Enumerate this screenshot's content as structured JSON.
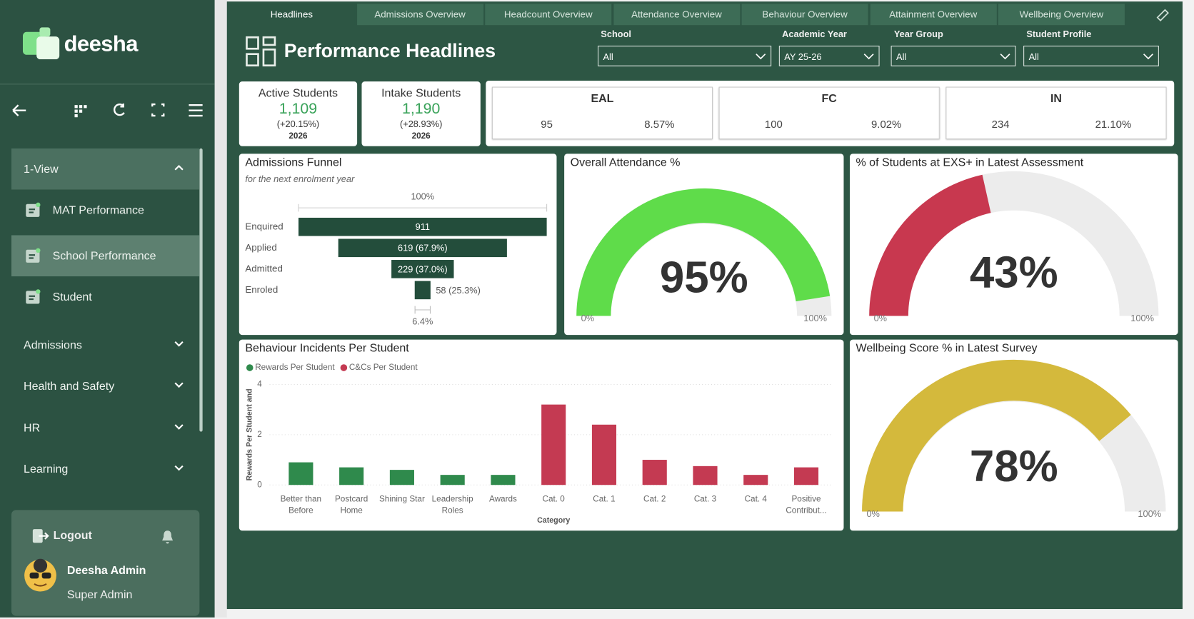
{
  "sidebar": {
    "logo": "deesha",
    "nav": [
      {
        "label": "1-View",
        "items": [
          "MAT Performance",
          "School Performance",
          "Student"
        ]
      },
      {
        "label": "Admissions"
      },
      {
        "label": "Health and Safety"
      },
      {
        "label": "HR"
      },
      {
        "label": "Learning"
      }
    ],
    "logout": "Logout",
    "user": {
      "name": "Deesha Admin",
      "role": "Super Admin"
    }
  },
  "tabs": [
    "Headlines",
    "Admissions Overview",
    "Headcount Overview",
    "Attendance Overview",
    "Behaviour Overview",
    "Attainment Overview",
    "Wellbeing Overview"
  ],
  "header": {
    "title": "Performance Headlines"
  },
  "filters": [
    {
      "label": "School",
      "value": "All"
    },
    {
      "label": "Academic Year",
      "value": "AY 25-26"
    },
    {
      "label": "Year Group",
      "value": "All"
    },
    {
      "label": "Student Profile",
      "value": "All"
    }
  ],
  "kpis": [
    {
      "label": "Active Students",
      "value": "1,109",
      "change": "(+20.15%)",
      "year": "2026"
    },
    {
      "label": "Intake Students",
      "value": "1,190",
      "change": "(+28.93%)",
      "year": "2026"
    }
  ],
  "groups": [
    {
      "label": "EAL",
      "count": "95",
      "percent": "8.57%"
    },
    {
      "label": "FC",
      "count": "100",
      "percent": "9.02%"
    },
    {
      "label": "IN",
      "count": "234",
      "percent": "21.10%"
    }
  ],
  "chart_data": [
    {
      "type": "funnel",
      "title": "Admissions Funnel",
      "subtitle": "for the next enrolment year",
      "categories": [
        "Enquired",
        "Applied",
        "Admitted",
        "Enroled"
      ],
      "values": [
        911,
        619,
        229,
        58
      ],
      "value_labels": [
        "911",
        "619 (67.9%)",
        "229 (37.0%)",
        "58 (25.3%)"
      ],
      "top_label": "100%",
      "bottom_label": "6.4%",
      "color": "#234d3b"
    },
    {
      "type": "gauge",
      "title": "Overall Attendance %",
      "value": 95,
      "value_label": "95%",
      "ylim": [
        0,
        100
      ],
      "yticks": [
        {
          "value": 0,
          "label": "0%"
        },
        {
          "value": 100,
          "label": "100%"
        }
      ],
      "color": "#5fdc4a",
      "track_color": "#ececec"
    },
    {
      "type": "gauge",
      "title": "% of Students at EXS+ in Latest Assessment",
      "value": 43,
      "value_label": "43%",
      "ylim": [
        0,
        100
      ],
      "yticks": [
        {
          "value": 0,
          "label": "0%"
        },
        {
          "value": 100,
          "label": "100%"
        }
      ],
      "color": "#c8384f",
      "track_color": "#ececec"
    },
    {
      "type": "bar",
      "title": "Behaviour Incidents Per Student",
      "categories": [
        "Better than Before",
        "Postcard Home",
        "Shining Star",
        "Leadership Roles",
        "Awards",
        "Cat. 0",
        "Cat. 1",
        "Cat. 2",
        "Cat. 3",
        "Cat. 4",
        "Positive Contribut..."
      ],
      "series": [
        {
          "name": "Rewards Per Student",
          "color": "#2f8a4c",
          "values": [
            0.9,
            0.7,
            0.6,
            0.4,
            0.4,
            null,
            null,
            null,
            null,
            null,
            null
          ]
        },
        {
          "name": "C&Cs Per Student",
          "color": "#c43a52",
          "values": [
            null,
            null,
            null,
            null,
            null,
            3.2,
            2.4,
            1.0,
            0.75,
            0.4,
            0.7
          ]
        }
      ],
      "ylim": [
        0,
        4
      ],
      "yticks": [
        0,
        2,
        4
      ],
      "grid": true,
      "x_label": "Category",
      "y_label": "Rewards Per Student and"
    },
    {
      "type": "gauge",
      "title": "Wellbeing Score % in Latest Survey",
      "value": 78,
      "value_label": "78%",
      "ylim": [
        0,
        100
      ],
      "yticks": [
        {
          "value": 0,
          "label": "0%"
        },
        {
          "value": 100,
          "label": "100%"
        }
      ],
      "color": "#d4b93c",
      "track_color": "#ececec"
    }
  ]
}
